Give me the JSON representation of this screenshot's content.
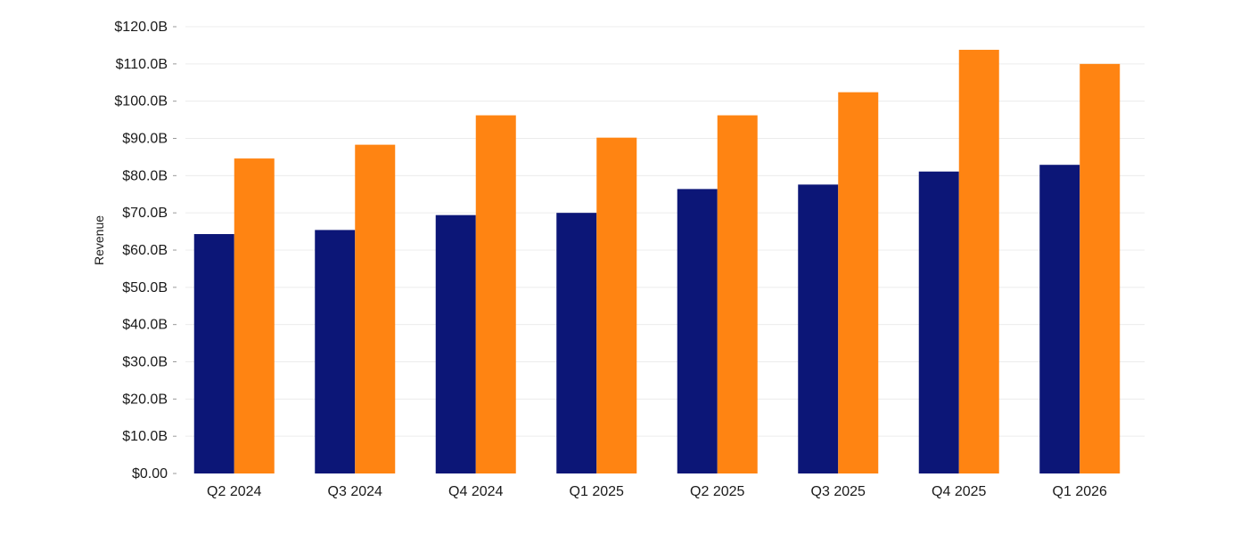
{
  "chart_data": {
    "type": "bar",
    "title": "",
    "xlabel": "",
    "ylabel": "Revenue",
    "ylim": [
      0,
      120
    ],
    "yticks": [
      0,
      10,
      20,
      30,
      40,
      50,
      60,
      70,
      80,
      90,
      100,
      110,
      120
    ],
    "ytick_labels": [
      "$0.00",
      "$10.0B",
      "$20.0B",
      "$30.0B",
      "$40.0B",
      "$50.0B",
      "$60.0B",
      "$70.0B",
      "$80.0B",
      "$90.0B",
      "$100.0B",
      "$110.0B",
      "$120.0B"
    ],
    "grid": true,
    "legend": "none",
    "categories": [
      "Q2 2024",
      "Q3 2024",
      "Q4 2024",
      "Q1 2025",
      "Q2 2025",
      "Q3 2025",
      "Q4 2025",
      "Q1 2026"
    ],
    "series": [
      {
        "color": "#0c1677",
        "values": [
          64.3,
          65.4,
          69.4,
          70.0,
          76.4,
          77.6,
          81.1,
          82.9
        ]
      },
      {
        "color": "#ff8412",
        "values": [
          84.6,
          88.3,
          96.2,
          90.2,
          96.2,
          102.4,
          113.8,
          110.0
        ]
      }
    ]
  }
}
